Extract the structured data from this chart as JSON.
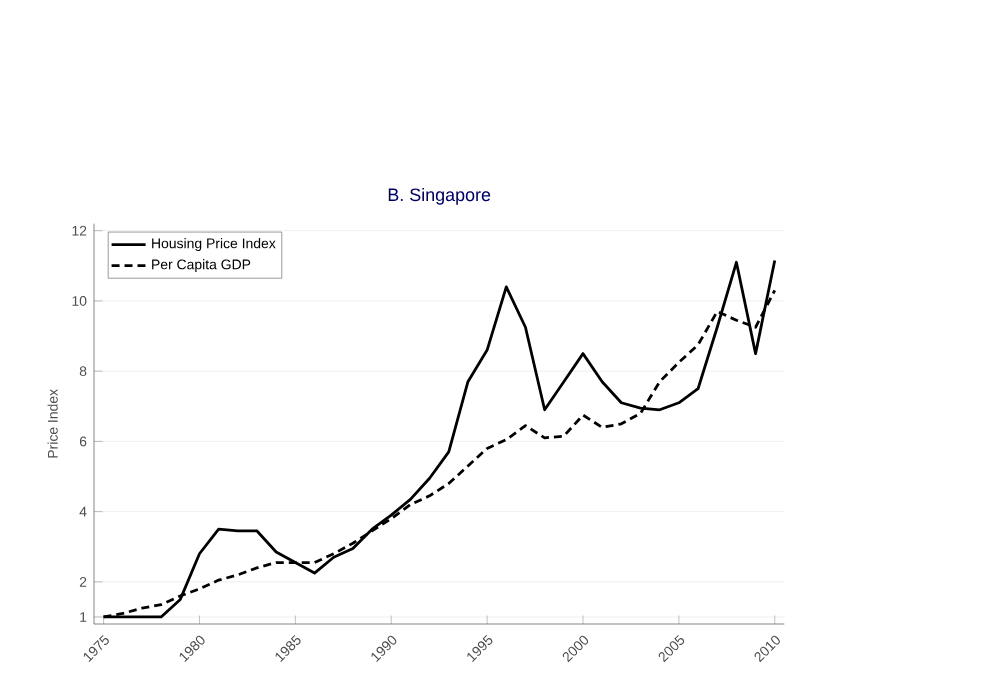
{
  "chart_data": {
    "type": "line",
    "title": "B. Singapore",
    "ylabel": "Price Index",
    "x": [
      1975,
      1976,
      1977,
      1978,
      1979,
      1980,
      1981,
      1982,
      1983,
      1984,
      1985,
      1986,
      1987,
      1988,
      1989,
      1990,
      1991,
      1992,
      1993,
      1994,
      1995,
      1996,
      1997,
      1998,
      1999,
      2000,
      2001,
      2002,
      2003,
      2004,
      2005,
      2006,
      2007,
      2008,
      2009,
      2010
    ],
    "series": [
      {
        "name": "Housing Price Index",
        "color": "#000000",
        "line_style": "solid",
        "values": [
          1.0,
          1.0,
          1.0,
          1.0,
          1.5,
          2.8,
          3.5,
          3.45,
          3.45,
          2.85,
          2.55,
          2.25,
          2.7,
          2.95,
          3.5,
          3.9,
          4.35,
          4.95,
          5.7,
          7.7,
          8.6,
          10.4,
          9.25,
          6.9,
          7.7,
          8.5,
          7.7,
          7.1,
          6.95,
          6.9,
          7.1,
          7.5,
          9.25,
          11.1,
          8.5,
          11.15
        ]
      },
      {
        "name": "Per Capita GDP",
        "color": "#000000",
        "line_style": "dashed",
        "values": [
          1.0,
          1.1,
          1.25,
          1.35,
          1.6,
          1.8,
          2.05,
          2.2,
          2.4,
          2.55,
          2.55,
          2.55,
          2.8,
          3.1,
          3.45,
          3.8,
          4.2,
          4.45,
          4.8,
          5.3,
          5.8,
          6.05,
          6.45,
          6.1,
          6.15,
          6.75,
          6.4,
          6.5,
          6.8,
          7.7,
          8.25,
          8.75,
          9.7,
          9.45,
          9.25,
          10.3
        ]
      }
    ],
    "xlim": [
      1974.5,
      2010.5
    ],
    "xticks": [
      1975,
      1980,
      1985,
      1990,
      1995,
      2000,
      2005,
      2010
    ],
    "ylim": [
      0.8,
      12.2
    ],
    "yticks": [
      1,
      2,
      4,
      6,
      8,
      10,
      12
    ],
    "grid": "y",
    "legend": "top left",
    "marker": "none"
  }
}
